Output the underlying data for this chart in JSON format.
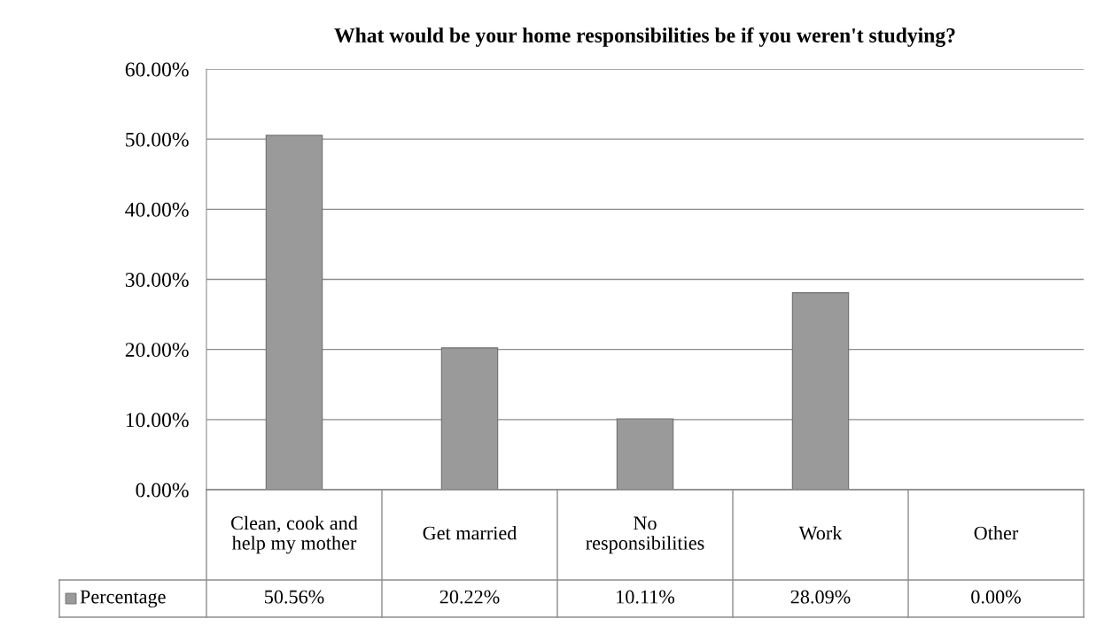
{
  "chart_data": {
    "type": "bar",
    "title": "What would be your home responsibilities be if you weren't studying?",
    "categories": [
      "Clean, cook and help my mother",
      "Get married",
      "No responsibilities",
      "Work",
      "Other"
    ],
    "series": [
      {
        "name": "Percentage",
        "color": "#9a9a9a",
        "values": [
          50.56,
          20.22,
          10.11,
          28.09,
          0.0
        ],
        "value_labels": [
          "50.56%",
          "20.22%",
          "10.11%",
          "28.09%",
          "0.00%"
        ]
      }
    ],
    "ylim": [
      0,
      60
    ],
    "yticks": [
      {
        "value": 0,
        "label": "0.00%"
      },
      {
        "value": 10,
        "label": "10.00%"
      },
      {
        "value": 20,
        "label": "20.00%"
      },
      {
        "value": 30,
        "label": "30.00%"
      },
      {
        "value": 40,
        "label": "40.00%"
      },
      {
        "value": 50,
        "label": "50.00%"
      },
      {
        "value": 60,
        "label": "60.00%"
      }
    ],
    "grid": "y",
    "legend": "bottom left"
  }
}
